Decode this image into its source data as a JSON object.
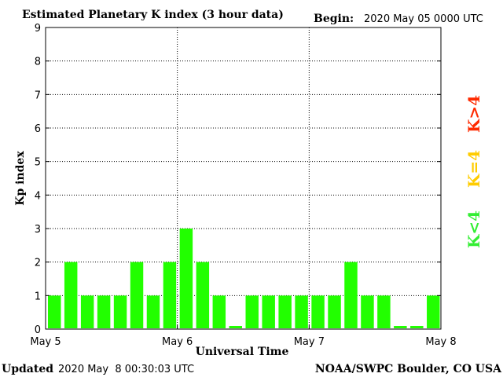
{
  "chart_data": {
    "type": "bar",
    "title": "Estimated Planetary K index (3 hour data)",
    "begin_label": "Begin:",
    "begin_value": "2020 May 05 0000 UTC",
    "xlabel": "Universal Time",
    "ylabel": "Kp index",
    "x_tick_labels": [
      "May 5",
      "May 6",
      "May 7",
      "May 8"
    ],
    "y_ticks": [
      0,
      1,
      2,
      3,
      4,
      5,
      6,
      7,
      8,
      9
    ],
    "ylim": [
      0,
      9
    ],
    "values": [
      1,
      2,
      1,
      1,
      1,
      2,
      1,
      2,
      3,
      2,
      1,
      0,
      1,
      1,
      1,
      1,
      1,
      1,
      2,
      1,
      1,
      0,
      0,
      1
    ],
    "interval_hours": 3,
    "grid": "dotted",
    "legend": [
      "K<4",
      "K=4",
      "K>4"
    ],
    "legend_colors": [
      "#33ee33",
      "#ffcc00",
      "#ff2a00"
    ],
    "bar_color": "#22ff00"
  },
  "footer": {
    "updated_label": "Updated",
    "updated_value": "2020 May  8 00:30:03 UTC",
    "source": "NOAA/SWPC Boulder, CO USA"
  }
}
